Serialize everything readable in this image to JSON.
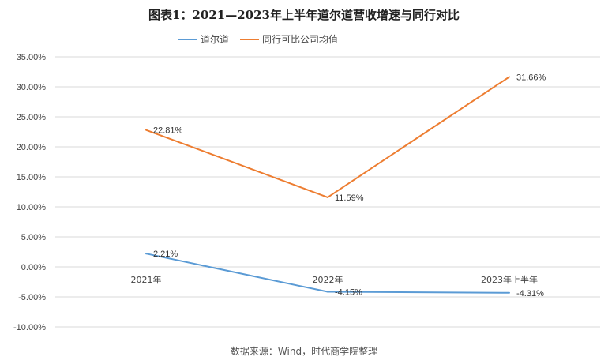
{
  "chart_data": {
    "type": "line",
    "title": "图表1：2021—2023年上半年道尔道营收增速与同行对比",
    "source": "数据来源：Wind，时代商学院整理",
    "categories": [
      "2021年",
      "2022年",
      "2023年上半年"
    ],
    "yticks": [
      "35.00%",
      "30.00%",
      "25.00%",
      "20.00%",
      "15.00%",
      "10.00%",
      "5.00%",
      "0.00%",
      "-5.00%",
      "-10.00%"
    ],
    "ylim": [
      -10,
      35
    ],
    "grid": true,
    "legend_position": "top",
    "series": [
      {
        "name": "道尔道",
        "color": "#5B9BD5",
        "values": [
          2.21,
          -4.15,
          -4.31
        ],
        "labels": [
          "2.21%",
          "-4.15%",
          "-4.31%"
        ]
      },
      {
        "name": "同行可比公司均值",
        "color": "#ED7D31",
        "values": [
          22.81,
          11.59,
          31.66
        ],
        "labels": [
          "22.81%",
          "11.59%",
          "31.66%"
        ]
      }
    ]
  }
}
